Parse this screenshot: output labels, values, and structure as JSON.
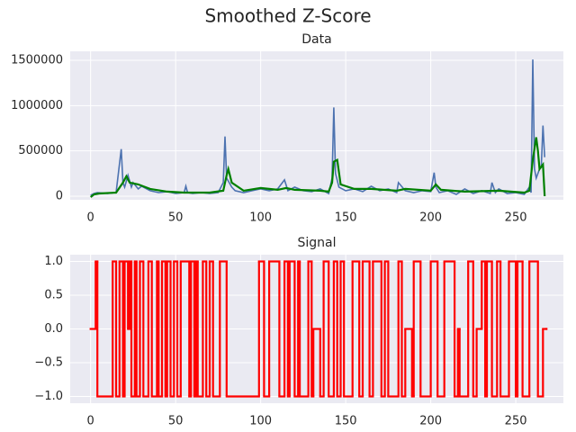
{
  "title": "Smoothed Z-Score",
  "chart_data": [
    {
      "type": "line",
      "title": "Data",
      "xlim": [
        -12,
        278
      ],
      "ylim": [
        -40000,
        1600000
      ],
      "xticks": [
        0,
        50,
        100,
        150,
        200,
        250
      ],
      "yticks": [
        0,
        500000,
        1000000,
        1500000
      ],
      "grid": true,
      "series": [
        {
          "color": "#4c72b0",
          "x": [
            0,
            2,
            4,
            10,
            15,
            18,
            19,
            20,
            22,
            24,
            25,
            28,
            30,
            35,
            40,
            45,
            50,
            55,
            56,
            57,
            60,
            65,
            70,
            75,
            78,
            79,
            80,
            83,
            85,
            90,
            95,
            100,
            105,
            110,
            114,
            116,
            120,
            125,
            130,
            135,
            140,
            142,
            143,
            144,
            146,
            150,
            155,
            160,
            165,
            170,
            175,
            180,
            181,
            185,
            190,
            195,
            200,
            202,
            203,
            205,
            210,
            215,
            220,
            225,
            230,
            235,
            236,
            238,
            240,
            245,
            250,
            255,
            258,
            259,
            260,
            261,
            262,
            264,
            265,
            266,
            267
          ],
          "values": [
            10000,
            30000,
            40000,
            30000,
            40000,
            520000,
            150000,
            100000,
            230000,
            100000,
            150000,
            80000,
            110000,
            60000,
            40000,
            50000,
            30000,
            40000,
            110000,
            40000,
            30000,
            40000,
            30000,
            40000,
            150000,
            660000,
            200000,
            100000,
            60000,
            40000,
            60000,
            80000,
            60000,
            80000,
            180000,
            60000,
            100000,
            60000,
            50000,
            80000,
            30000,
            200000,
            980000,
            250000,
            100000,
            60000,
            80000,
            50000,
            110000,
            60000,
            80000,
            40000,
            150000,
            60000,
            40000,
            60000,
            50000,
            260000,
            100000,
            40000,
            60000,
            20000,
            80000,
            30000,
            60000,
            30000,
            150000,
            40000,
            80000,
            30000,
            40000,
            20000,
            100000,
            40000,
            1510000,
            300000,
            200000,
            300000,
            320000,
            780000,
            430000
          ]
        },
        {
          "color": "#008000",
          "x": [
            0,
            2,
            5,
            15,
            19,
            21,
            23,
            28,
            35,
            45,
            55,
            70,
            78,
            80,
            81,
            83,
            90,
            100,
            110,
            115,
            120,
            135,
            140,
            142,
            143,
            145,
            147,
            155,
            165,
            180,
            185,
            200,
            203,
            206,
            220,
            240,
            255,
            258,
            260,
            262,
            263,
            264,
            266,
            267
          ],
          "values": [
            -10000,
            20000,
            30000,
            40000,
            150000,
            220000,
            150000,
            130000,
            80000,
            50000,
            40000,
            40000,
            60000,
            230000,
            300000,
            150000,
            60000,
            90000,
            70000,
            90000,
            70000,
            60000,
            50000,
            150000,
            380000,
            400000,
            130000,
            80000,
            80000,
            60000,
            80000,
            60000,
            130000,
            70000,
            50000,
            60000,
            40000,
            60000,
            400000,
            650000,
            500000,
            300000,
            350000,
            0
          ]
        }
      ]
    },
    {
      "type": "step",
      "title": "Signal",
      "xlim": [
        -12,
        278
      ],
      "ylim": [
        -1.1,
        1.1
      ],
      "xticks": [
        0,
        50,
        100,
        150,
        200,
        250
      ],
      "yticks": [
        {
          "value": -1,
          "label": "−1.0"
        },
        {
          "value": -0.5,
          "label": "−0.5"
        },
        {
          "value": 0,
          "label": "0.0"
        },
        {
          "value": 0.5,
          "label": "0.5"
        },
        {
          "value": 1,
          "label": "1.0"
        }
      ],
      "grid": true,
      "series": [
        {
          "color": "#ff0000",
          "x": [
            0,
            3,
            4,
            13,
            15,
            17,
            19,
            20,
            22,
            23,
            24,
            26,
            27,
            29,
            31,
            34,
            36,
            39,
            40,
            42,
            44,
            45,
            47,
            49,
            51,
            53,
            58,
            59,
            61,
            62,
            63,
            66,
            68,
            70,
            72,
            76,
            80,
            99,
            102,
            105,
            111,
            114,
            116,
            117,
            120,
            122,
            123,
            128,
            130,
            131,
            135,
            137,
            140,
            143,
            145,
            147,
            149,
            154,
            158,
            160,
            164,
            166,
            171,
            173,
            175,
            181,
            183,
            185,
            189,
            190,
            194,
            200,
            204,
            208,
            214,
            216,
            217,
            222,
            225,
            227,
            230,
            232,
            233,
            236,
            239,
            241,
            246,
            250,
            251,
            254,
            258,
            263,
            266,
            268
          ],
          "values": [
            0,
            1,
            -1,
            1,
            -1,
            1,
            -1,
            1,
            0,
            1,
            -1,
            1,
            -1,
            1,
            -1,
            1,
            -1,
            1,
            -1,
            1,
            -1,
            1,
            -1,
            1,
            -1,
            1,
            -1,
            1,
            -1,
            1,
            -1,
            1,
            -1,
            1,
            -1,
            1,
            -1,
            1,
            -1,
            1,
            -1,
            1,
            -1,
            1,
            -1,
            1,
            -1,
            1,
            -1,
            0,
            -1,
            1,
            -1,
            1,
            -1,
            1,
            -1,
            1,
            -1,
            1,
            -1,
            1,
            -1,
            1,
            -1,
            1,
            -1,
            0,
            -1,
            1,
            -1,
            1,
            -1,
            1,
            -1,
            0,
            -1,
            1,
            -1,
            0,
            1,
            -1,
            1,
            -1,
            1,
            -1,
            1,
            -1,
            1,
            -1,
            1,
            -1,
            0,
            0
          ]
        }
      ]
    }
  ]
}
